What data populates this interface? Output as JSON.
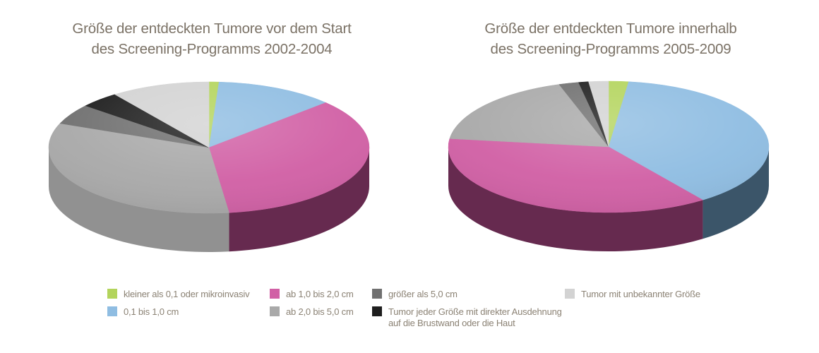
{
  "titles": {
    "left": {
      "line1": "Größe der entdeckten Tumore vor dem Start",
      "line2": "des Screening-Programms 2002-2004"
    },
    "right": {
      "line1": "Größe der entdeckten Tumore innerhalb",
      "line2": "des Screening-Programms 2005-2009"
    }
  },
  "segments": [
    {
      "label": "kleiner als 0,1 oder mikroinvasiv",
      "color": "#b3d45c",
      "side_color": "#84a23c"
    },
    {
      "label": "0,1 bis 1,0 cm",
      "color": "#8fbde2",
      "side_color": "#3b5569"
    },
    {
      "label": "ab 1,0 bis 2,0 cm",
      "color": "#d160a5",
      "side_color": "#662a4f"
    },
    {
      "label": "ab 2,0 bis 5,0 cm",
      "color": "#a9a9a9",
      "side_color": "#919191"
    },
    {
      "label": "größer als 5,0 cm",
      "color": "#707070",
      "side_color": "#4f4f4f"
    },
    {
      "label": "Tumor jeder Größe mit direkter Ausdehnung auf die Brustwand oder die Haut",
      "color": "#1e1e1e",
      "side_color": "#000000"
    },
    {
      "label": "Tumor mit unbekannter Größe",
      "color": "#d3d3d3",
      "side_color": "#b8b8b8"
    }
  ],
  "chart_data": [
    {
      "type": "pie",
      "style": "3d",
      "title": "Größe der entdeckten Tumore vor dem Start des Screening-Programms 2002-2004",
      "categories": [
        "kleiner als 0,1 oder mikroinvasiv",
        "0,1 bis 1,0 cm",
        "ab 1,0 bis 2,0 cm",
        "ab 2,0 bis 5,0 cm",
        "größer als 5,0 cm",
        "Tumor jeder Größe mit direkter Ausdehnung auf die Brustwand oder die Haut",
        "Tumor mit unbekannter Größe"
      ],
      "values": [
        1,
        12,
        35,
        33,
        5,
        4,
        10
      ],
      "unit": "percent",
      "start_angle_deg": 0,
      "direction": "clockwise",
      "legend_position": "bottom"
    },
    {
      "type": "pie",
      "style": "3d",
      "title": "Größe der entdeckten Tumore innerhalb des Screening-Programms 2005-2009",
      "categories": [
        "kleiner als 0,1 oder mikroinvasiv",
        "0,1 bis 1,0 cm",
        "ab 1,0 bis 2,0 cm",
        "ab 2,0 bis 5,0 cm",
        "größer als 5,0 cm",
        "Tumor jeder Größe mit direkter Ausdehnung auf die Brustwand oder die Haut",
        "Tumor mit unbekannter Größe"
      ],
      "values": [
        2,
        38,
        37,
        18,
        2,
        1,
        2
      ],
      "unit": "percent",
      "start_angle_deg": 0,
      "direction": "clockwise",
      "legend_position": "bottom"
    }
  ]
}
